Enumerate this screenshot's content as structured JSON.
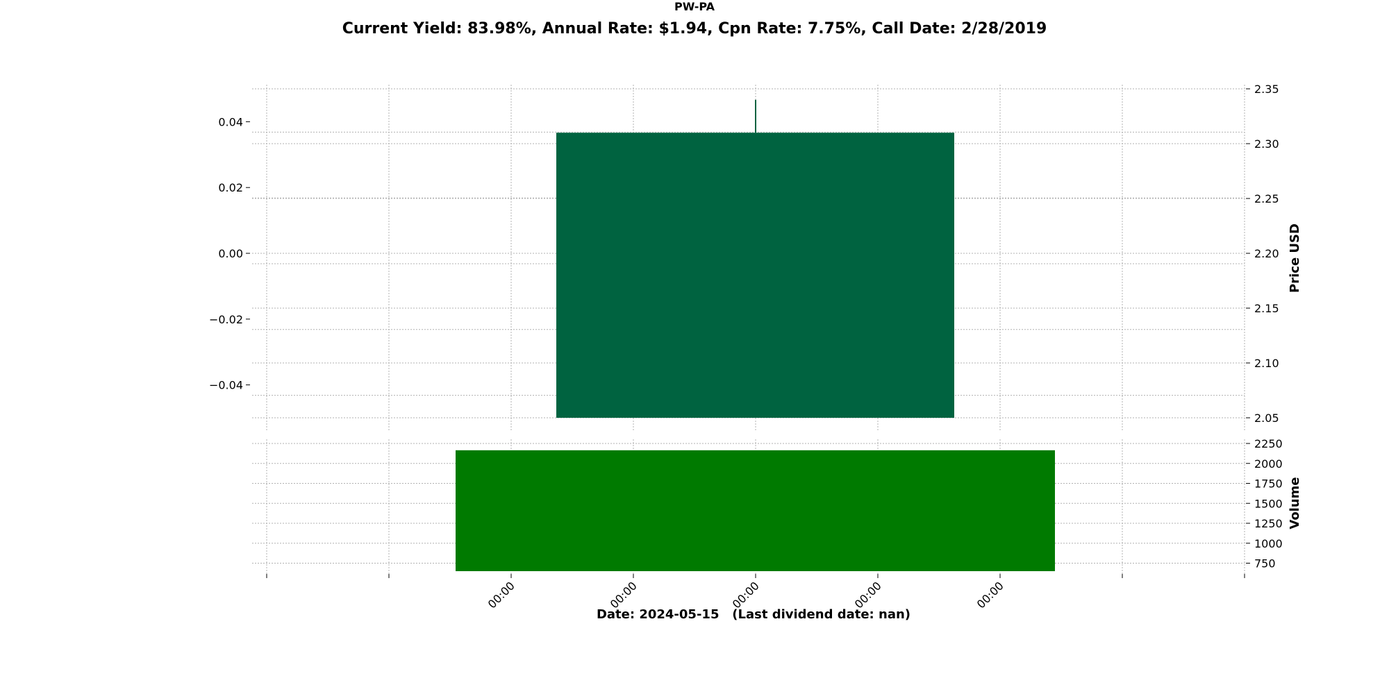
{
  "chart_data": {
    "type": "candlestick",
    "title": "PW-PA",
    "subtitle": "Current Yield: 83.98%, Annual Rate: $1.94, Cpn Rate: 7.75%, Call Date: 2/28/2019",
    "xlabel": "Date: 2024-05-15   (Last dividend date: nan)",
    "x_tick_labels": [
      "00:00",
      "00:00",
      "00:00",
      "00:00",
      "00:00"
    ],
    "price_panel": {
      "ylabel": "Price USD",
      "right_ylim": [
        2.05,
        2.35
      ],
      "right_ticks": [
        2.05,
        2.1,
        2.15,
        2.2,
        2.25,
        2.3,
        2.35
      ],
      "left_ylim": [
        -0.05,
        0.05
      ],
      "left_ticks": [
        -0.04,
        -0.02,
        0.0,
        0.02,
        0.04
      ],
      "left_tick_labels": [
        "−0.04",
        "−0.02",
        "0.00",
        "0.02",
        "0.04"
      ],
      "candle": {
        "open": 2.05,
        "close": 2.31,
        "high": 2.34,
        "low": 2.05
      },
      "candle_color": "#006340"
    },
    "volume_panel": {
      "ylabel": "Volume",
      "ylim": [
        650,
        2250
      ],
      "ticks": [
        750,
        1000,
        1250,
        1500,
        1750,
        2000,
        2250
      ],
      "volume": 2165,
      "bar_color": "#007a00"
    },
    "grid": true
  }
}
